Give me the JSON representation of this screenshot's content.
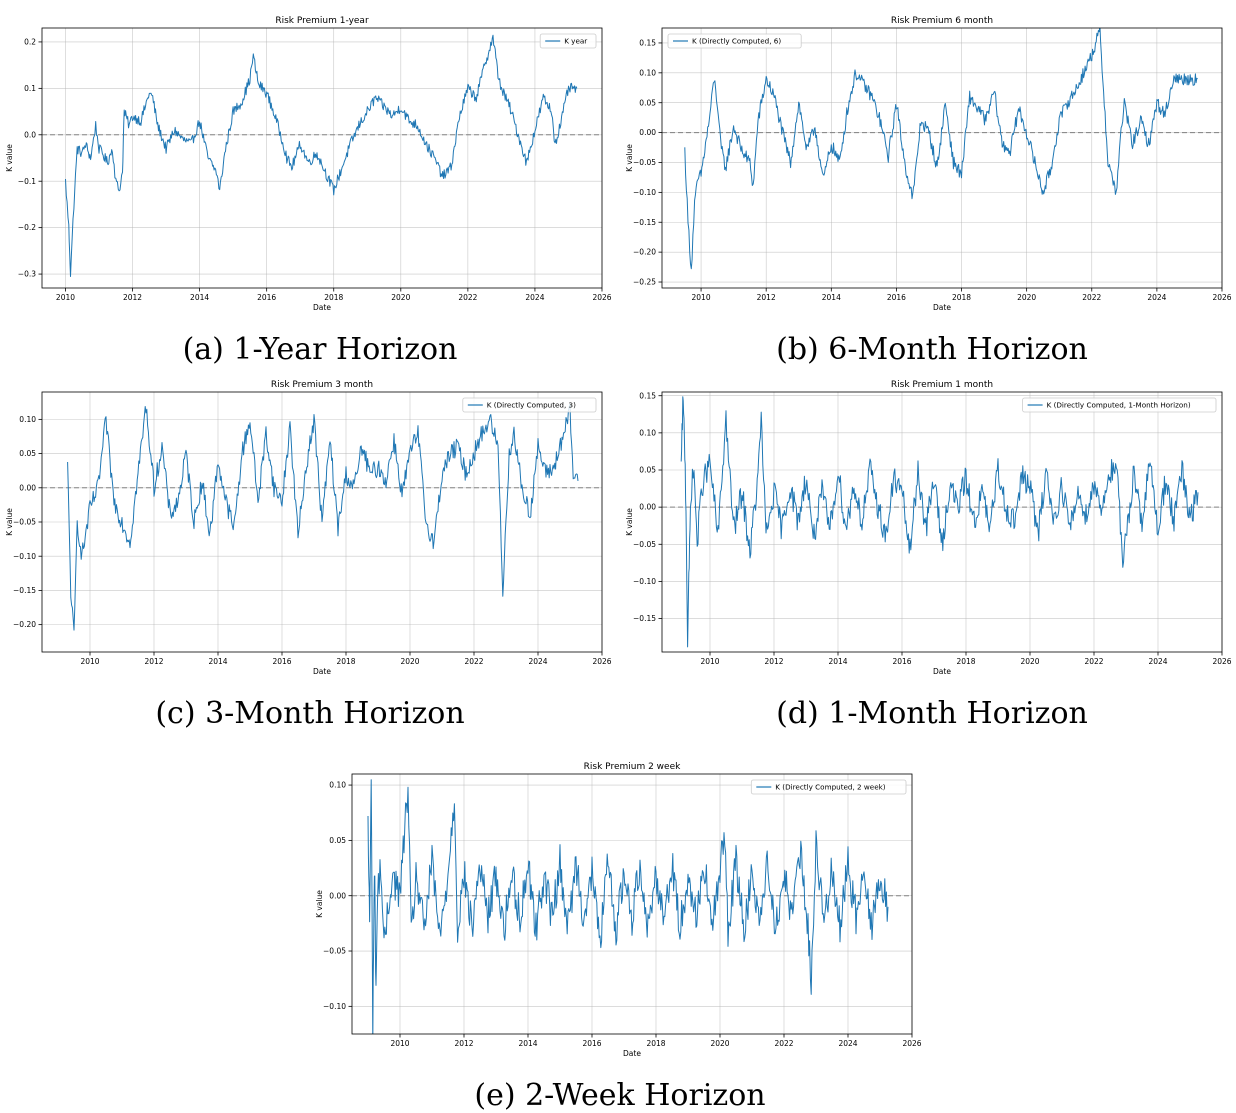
{
  "colors": {
    "series": "#1f77b4",
    "zero_line": "#808080",
    "grid": "#b0b0b0",
    "axes": "#000000"
  },
  "chart_data": [
    {
      "id": "a",
      "type": "line",
      "title": "Risk Premium 1-year",
      "xlabel": "Date",
      "ylabel": "K value",
      "xlim": [
        2009.3,
        2026.0
      ],
      "ylim": [
        -0.33,
        0.23
      ],
      "xticks": [
        2010,
        2012,
        2014,
        2016,
        2018,
        2020,
        2022,
        2024,
        2026
      ],
      "yticks": [
        -0.3,
        -0.2,
        -0.1,
        0.0,
        0.1,
        0.2
      ],
      "ytick_labels": [
        "−0.3",
        "−0.2",
        "−0.1",
        "0.0",
        "0.1",
        "0.2"
      ],
      "grid": true,
      "legend_position": "top-right",
      "hline": 0.0,
      "series": [
        {
          "name": "K year",
          "x": [
            2010.0,
            2010.1,
            2010.15,
            2010.25,
            2010.35,
            2010.5,
            2010.6,
            2010.75,
            2010.9,
            2011.0,
            2011.1,
            2011.25,
            2011.4,
            2011.5,
            2011.6,
            2011.7,
            2011.75,
            2011.9,
            2012.0,
            2012.25,
            2012.5,
            2012.6,
            2012.75,
            2013.0,
            2013.25,
            2013.5,
            2013.75,
            2014.0,
            2014.25,
            2014.5,
            2014.6,
            2014.75,
            2015.0,
            2015.25,
            2015.5,
            2015.6,
            2015.75,
            2016.0,
            2016.25,
            2016.5,
            2016.6,
            2016.75,
            2017.0,
            2017.25,
            2017.5,
            2017.75,
            2018.0,
            2018.25,
            2018.5,
            2018.75,
            2019.0,
            2019.25,
            2019.5,
            2019.75,
            2020.0,
            2020.25,
            2020.5,
            2020.75,
            2021.0,
            2021.25,
            2021.5,
            2021.75,
            2022.0,
            2022.25,
            2022.5,
            2022.75,
            2022.9,
            2023.0,
            2023.25,
            2023.5,
            2023.75,
            2024.0,
            2024.25,
            2024.5,
            2024.6,
            2024.75,
            2025.0,
            2025.25
          ],
          "values": [
            -0.1,
            -0.2,
            -0.3,
            -0.15,
            -0.03,
            -0.04,
            -0.02,
            -0.05,
            0.02,
            -0.03,
            -0.04,
            -0.06,
            -0.03,
            -0.1,
            -0.12,
            -0.08,
            0.05,
            0.02,
            0.04,
            0.03,
            0.09,
            0.08,
            0.02,
            -0.03,
            0.01,
            -0.01,
            -0.02,
            0.03,
            -0.05,
            -0.08,
            -0.12,
            -0.04,
            0.05,
            0.07,
            0.12,
            0.17,
            0.11,
            0.09,
            0.04,
            -0.02,
            -0.05,
            -0.07,
            -0.02,
            -0.06,
            -0.04,
            -0.08,
            -0.12,
            -0.07,
            -0.02,
            0.02,
            0.05,
            0.08,
            0.06,
            0.04,
            0.06,
            0.03,
            0.02,
            -0.02,
            -0.05,
            -0.09,
            -0.07,
            0.04,
            0.1,
            0.08,
            0.15,
            0.21,
            0.13,
            0.1,
            0.06,
            0.0,
            -0.06,
            0.01,
            0.08,
            0.05,
            -0.02,
            0.02,
            0.1,
            0.1
          ]
        }
      ]
    },
    {
      "id": "b",
      "type": "line",
      "title": "Risk Premium 6 month",
      "xlabel": "Date",
      "ylabel": "K value",
      "xlim": [
        2008.8,
        2026.0
      ],
      "ylim": [
        -0.26,
        0.175
      ],
      "xticks": [
        2010,
        2012,
        2014,
        2016,
        2018,
        2020,
        2022,
        2024,
        2026
      ],
      "yticks": [
        -0.25,
        -0.2,
        -0.15,
        -0.1,
        -0.05,
        0.0,
        0.05,
        0.1,
        0.15
      ],
      "ytick_labels": [
        "−0.25",
        "−0.20",
        "−0.15",
        "−0.10",
        "−0.05",
        "0.00",
        "0.05",
        "0.10",
        "0.15"
      ],
      "grid": true,
      "legend_position": "top-left",
      "hline": 0.0,
      "series": [
        {
          "name": "K (Directly Computed, 6)",
          "x": [
            2009.5,
            2009.6,
            2009.7,
            2009.8,
            2009.9,
            2010.0,
            2010.25,
            2010.4,
            2010.5,
            2010.6,
            2010.75,
            2011.0,
            2011.25,
            2011.5,
            2011.6,
            2011.75,
            2012.0,
            2012.25,
            2012.5,
            2012.75,
            2013.0,
            2013.25,
            2013.5,
            2013.75,
            2014.0,
            2014.25,
            2014.5,
            2014.75,
            2015.0,
            2015.25,
            2015.5,
            2015.75,
            2016.0,
            2016.25,
            2016.5,
            2016.6,
            2016.75,
            2017.0,
            2017.25,
            2017.5,
            2017.75,
            2018.0,
            2018.25,
            2018.5,
            2018.75,
            2019.0,
            2019.25,
            2019.5,
            2019.75,
            2020.0,
            2020.25,
            2020.5,
            2020.75,
            2021.0,
            2021.25,
            2021.5,
            2021.75,
            2022.0,
            2022.25,
            2022.5,
            2022.75,
            2022.9,
            2023.0,
            2023.25,
            2023.5,
            2023.75,
            2024.0,
            2024.25,
            2024.5,
            2024.75,
            2025.0,
            2025.25
          ],
          "values": [
            -0.03,
            -0.15,
            -0.23,
            -0.12,
            -0.08,
            -0.07,
            0.02,
            0.09,
            0.05,
            -0.02,
            -0.06,
            0.01,
            -0.03,
            -0.05,
            -0.09,
            0.02,
            0.09,
            0.06,
            0.0,
            -0.05,
            0.05,
            -0.03,
            0.01,
            -0.08,
            -0.02,
            -0.05,
            0.04,
            0.1,
            0.08,
            0.06,
            0.02,
            -0.04,
            0.05,
            -0.05,
            -0.11,
            -0.06,
            0.02,
            0.0,
            -0.06,
            0.05,
            -0.05,
            -0.07,
            0.06,
            0.04,
            0.02,
            0.07,
            -0.02,
            -0.03,
            0.04,
            0.0,
            -0.05,
            -0.1,
            -0.06,
            0.02,
            0.05,
            0.07,
            0.1,
            0.13,
            0.17,
            -0.05,
            -0.1,
            0.0,
            0.05,
            -0.02,
            0.02,
            -0.02,
            0.05,
            0.03,
            0.09,
            0.09,
            0.09,
            0.09
          ]
        }
      ]
    },
    {
      "id": "c",
      "type": "line",
      "title": "Risk Premium 3 month",
      "xlabel": "Date",
      "ylabel": "K value",
      "xlim": [
        2008.5,
        2026.0
      ],
      "ylim": [
        -0.24,
        0.14
      ],
      "xticks": [
        2010,
        2012,
        2014,
        2016,
        2018,
        2020,
        2022,
        2024,
        2026
      ],
      "yticks": [
        -0.2,
        -0.15,
        -0.1,
        -0.05,
        0.0,
        0.05,
        0.1
      ],
      "ytick_labels": [
        "−0.20",
        "−0.15",
        "−0.10",
        "−0.05",
        "0.00",
        "0.05",
        "0.10"
      ],
      "grid": true,
      "legend_position": "top-right",
      "hline": 0.0,
      "series": [
        {
          "name": "K (Directly Computed, 3)",
          "x": [
            2009.3,
            2009.4,
            2009.5,
            2009.6,
            2009.75,
            2010.0,
            2010.25,
            2010.5,
            2010.6,
            2010.75,
            2011.0,
            2011.25,
            2011.5,
            2011.75,
            2012.0,
            2012.25,
            2012.5,
            2012.75,
            2013.0,
            2013.25,
            2013.5,
            2013.75,
            2014.0,
            2014.25,
            2014.5,
            2014.75,
            2015.0,
            2015.25,
            2015.5,
            2015.75,
            2016.0,
            2016.25,
            2016.5,
            2016.75,
            2017.0,
            2017.25,
            2017.5,
            2017.75,
            2018.0,
            2018.25,
            2018.5,
            2018.75,
            2019.0,
            2019.25,
            2019.5,
            2019.75,
            2020.0,
            2020.25,
            2020.5,
            2020.75,
            2021.0,
            2021.25,
            2021.5,
            2021.75,
            2022.0,
            2022.25,
            2022.5,
            2022.75,
            2022.9,
            2023.0,
            2023.1,
            2023.25,
            2023.5,
            2023.75,
            2024.0,
            2024.25,
            2024.5,
            2024.75,
            2025.0,
            2025.1,
            2025.25
          ],
          "values": [
            0.03,
            -0.15,
            -0.22,
            -0.05,
            -0.1,
            -0.03,
            0.0,
            0.1,
            0.05,
            -0.02,
            -0.05,
            -0.08,
            0.02,
            0.12,
            0.0,
            0.06,
            -0.04,
            -0.02,
            0.05,
            -0.05,
            0.01,
            -0.07,
            0.04,
            -0.02,
            -0.06,
            0.05,
            0.1,
            -0.02,
            0.08,
            0.0,
            -0.02,
            0.09,
            -0.07,
            0.03,
            0.1,
            -0.05,
            0.07,
            -0.06,
            0.02,
            0.0,
            0.06,
            0.02,
            0.03,
            0.01,
            0.07,
            -0.01,
            0.05,
            0.08,
            -0.05,
            -0.08,
            0.02,
            0.05,
            0.06,
            0.02,
            0.05,
            0.08,
            0.1,
            0.06,
            -0.15,
            -0.05,
            0.05,
            0.08,
            0.0,
            -0.04,
            0.06,
            0.02,
            0.03,
            0.07,
            0.11,
            0.02,
            0.01
          ]
        }
      ]
    },
    {
      "id": "d",
      "type": "line",
      "title": "Risk Premium 1 month",
      "xlabel": "Date",
      "ylabel": "K value",
      "xlim": [
        2008.5,
        2026.0
      ],
      "ylim": [
        -0.195,
        0.155
      ],
      "xticks": [
        2010,
        2012,
        2014,
        2016,
        2018,
        2020,
        2022,
        2024,
        2026
      ],
      "yticks": [
        -0.15,
        -0.1,
        -0.05,
        0.0,
        0.05,
        0.1,
        0.15
      ],
      "ytick_labels": [
        "−0.15",
        "−0.10",
        "−0.05",
        "0.00",
        "0.05",
        "0.10",
        "0.15"
      ],
      "grid": true,
      "legend_position": "top-right",
      "hline": 0.0,
      "series": [
        {
          "name": "K (Directly Computed, 1-Month Horizon)",
          "x": [
            2009.1,
            2009.15,
            2009.2,
            2009.25,
            2009.3,
            2009.35,
            2009.4,
            2009.5,
            2009.6,
            2009.75,
            2010.0,
            2010.25,
            2010.5,
            2010.6,
            2010.75,
            2011.0,
            2011.25,
            2011.5,
            2011.6,
            2011.75,
            2012.0,
            2012.25,
            2012.5,
            2012.75,
            2013.0,
            2013.25,
            2013.5,
            2013.75,
            2014.0,
            2014.25,
            2014.5,
            2014.75,
            2015.0,
            2015.25,
            2015.5,
            2015.75,
            2016.0,
            2016.25,
            2016.5,
            2016.75,
            2017.0,
            2017.25,
            2017.5,
            2017.75,
            2018.0,
            2018.25,
            2018.5,
            2018.75,
            2019.0,
            2019.25,
            2019.5,
            2019.75,
            2020.0,
            2020.25,
            2020.5,
            2020.75,
            2021.0,
            2021.25,
            2021.5,
            2021.75,
            2022.0,
            2022.25,
            2022.5,
            2022.75,
            2022.9,
            2023.0,
            2023.25,
            2023.5,
            2023.75,
            2024.0,
            2024.25,
            2024.5,
            2024.75,
            2025.0,
            2025.25
          ],
          "values": [
            0.05,
            0.14,
            0.1,
            0.0,
            -0.18,
            -0.08,
            0.02,
            0.05,
            -0.05,
            0.03,
            0.06,
            -0.04,
            0.12,
            0.05,
            -0.03,
            0.02,
            -0.06,
            0.04,
            0.12,
            -0.04,
            0.02,
            -0.03,
            0.03,
            -0.02,
            0.04,
            -0.04,
            0.02,
            -0.03,
            0.05,
            -0.03,
            0.03,
            -0.02,
            0.05,
            0.0,
            -0.04,
            0.04,
            0.02,
            -0.06,
            0.05,
            -0.03,
            0.04,
            -0.05,
            0.03,
            0.0,
            0.04,
            -0.02,
            0.02,
            -0.03,
            0.05,
            0.0,
            -0.02,
            0.04,
            0.03,
            -0.04,
            0.05,
            -0.02,
            0.03,
            -0.03,
            0.02,
            -0.01,
            0.03,
            0.0,
            0.05,
            0.04,
            -0.09,
            -0.04,
            0.05,
            -0.02,
            0.06,
            -0.03,
            0.04,
            -0.02,
            0.05,
            -0.02,
            0.02
          ]
        }
      ]
    },
    {
      "id": "e",
      "type": "line",
      "title": "Risk Premium 2 week",
      "xlabel": "Date",
      "ylabel": "K value",
      "xlim": [
        2008.5,
        2026.0
      ],
      "ylim": [
        -0.125,
        0.11
      ],
      "xticks": [
        2010,
        2012,
        2014,
        2016,
        2018,
        2020,
        2022,
        2024,
        2026
      ],
      "yticks": [
        -0.1,
        -0.05,
        0.0,
        0.05,
        0.1
      ],
      "ytick_labels": [
        "−0.10",
        "−0.05",
        "0.00",
        "0.05",
        "0.10"
      ],
      "grid": true,
      "legend_position": "top-right",
      "hline": 0.0,
      "series": [
        {
          "name": "K (Directly Computed, 2 week)",
          "x": [
            2009.0,
            2009.05,
            2009.1,
            2009.15,
            2009.2,
            2009.25,
            2009.3,
            2009.4,
            2009.5,
            2009.75,
            2010.0,
            2010.25,
            2010.35,
            2010.5,
            2010.75,
            2011.0,
            2011.25,
            2011.5,
            2011.7,
            2011.8,
            2012.0,
            2012.25,
            2012.5,
            2012.75,
            2013.0,
            2013.25,
            2013.5,
            2013.75,
            2014.0,
            2014.25,
            2014.5,
            2014.75,
            2015.0,
            2015.25,
            2015.5,
            2015.75,
            2016.0,
            2016.25,
            2016.5,
            2016.75,
            2017.0,
            2017.25,
            2017.5,
            2017.75,
            2018.0,
            2018.25,
            2018.5,
            2018.75,
            2019.0,
            2019.25,
            2019.5,
            2019.75,
            2020.0,
            2020.15,
            2020.25,
            2020.5,
            2020.75,
            2021.0,
            2021.25,
            2021.5,
            2021.75,
            2022.0,
            2022.25,
            2022.5,
            2022.75,
            2022.85,
            2023.0,
            2023.25,
            2023.5,
            2023.75,
            2024.0,
            2024.25,
            2024.5,
            2024.75,
            2025.0,
            2025.25
          ],
          "values": [
            0.06,
            -0.02,
            0.1,
            -0.12,
            0.03,
            -0.08,
            0.0,
            0.03,
            -0.05,
            0.02,
            0.0,
            0.1,
            -0.04,
            0.02,
            -0.03,
            0.03,
            -0.04,
            0.02,
            0.09,
            -0.03,
            0.02,
            -0.03,
            0.03,
            -0.02,
            0.02,
            -0.03,
            0.02,
            -0.02,
            0.03,
            -0.03,
            0.02,
            -0.02,
            0.03,
            -0.03,
            0.03,
            -0.02,
            0.02,
            -0.04,
            0.03,
            -0.03,
            0.02,
            -0.02,
            0.03,
            -0.03,
            0.02,
            -0.02,
            0.03,
            -0.03,
            0.02,
            -0.02,
            0.03,
            -0.03,
            0.02,
            0.06,
            -0.03,
            0.03,
            -0.03,
            0.02,
            -0.02,
            0.03,
            -0.03,
            0.02,
            -0.02,
            0.04,
            -0.03,
            -0.08,
            0.05,
            -0.03,
            0.03,
            -0.03,
            0.03,
            -0.02,
            0.03,
            -0.03,
            0.02,
            -0.01
          ]
        }
      ]
    }
  ],
  "captions": {
    "a": "(a) 1-Year Horizon",
    "b": "(b) 6-Month Horizon",
    "c": "(c) 3-Month Horizon",
    "d": "(d) 1-Month Horizon",
    "e": "(e) 2-Week Horizon"
  }
}
